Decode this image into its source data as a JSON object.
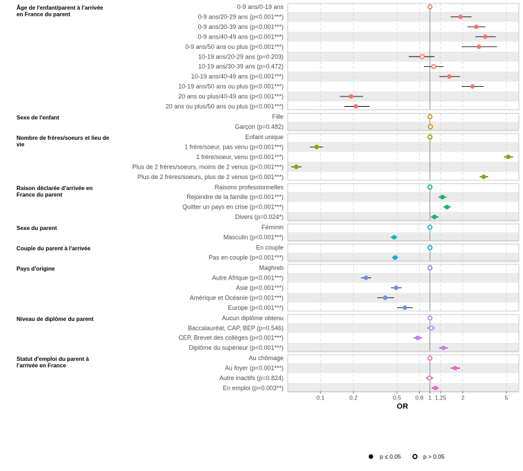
{
  "chart_data": {
    "type": "forest-plot",
    "xlabel": "OR",
    "x_scale": "log",
    "x_ticks": [
      0.1,
      0.2,
      0.5,
      0.8,
      1,
      1.25,
      2,
      5
    ],
    "x_tick_labels": [
      "0.1",
      "0.2",
      "0.5",
      "0.8",
      "1",
      "1.25",
      "2",
      "5"
    ],
    "reference_line": 1,
    "legend": {
      "position": "bottom-right",
      "significant": "p ≤ 0.05",
      "not_significant": "p > 0.05"
    },
    "groups": [
      {
        "title": "Âge de l'enfant/parent à l'arrivée en France du parent",
        "title_lines": [
          "Âge de l'enfant/parent à l'arrivée",
          "en France du parent"
        ],
        "color": "#f8766d",
        "rows": [
          {
            "label": "0-9 ans/0-19 ans",
            "or": 1,
            "lo": null,
            "hi": null,
            "sig": false
          },
          {
            "label": "0-9 ans/20-29 ans (p<0.001***)",
            "or": 1.9,
            "lo": 1.55,
            "hi": 2.4,
            "sig": true
          },
          {
            "label": "0-9 ans/30-39 ans (p<0.001***)",
            "or": 2.65,
            "lo": 2.2,
            "hi": 3.2,
            "sig": true
          },
          {
            "label": "0-9 ans/40-49 ans (p<0.001***)",
            "or": 3.2,
            "lo": 2.6,
            "hi": 4.0,
            "sig": true
          },
          {
            "label": "0-9 ans/50 ans ou plus (p<0.001***)",
            "or": 2.8,
            "lo": 1.95,
            "hi": 4.1,
            "sig": true
          },
          {
            "label": "10-19 ans/20-29 ans (p=0.203)",
            "or": 0.85,
            "lo": 0.64,
            "hi": 1.1,
            "sig": false
          },
          {
            "label": "10-19 ans/30-39 ans (p=0.472)",
            "or": 1.08,
            "lo": 0.88,
            "hi": 1.33,
            "sig": false
          },
          {
            "label": "10-19 ans/40-49 ans (p<0.001***)",
            "or": 1.5,
            "lo": 1.22,
            "hi": 1.88,
            "sig": true
          },
          {
            "label": "10-19 ans/50 ans ou plus (p<0.001***)",
            "or": 2.45,
            "lo": 1.95,
            "hi": 3.1,
            "sig": true
          },
          {
            "label": "20 ans ou plus/40-49 ans (p<0.001***)",
            "or": 0.19,
            "lo": 0.15,
            "hi": 0.245,
            "sig": true
          },
          {
            "label": "20 ans ou plus/50 ans ou plus (p<0.001***)",
            "or": 0.21,
            "lo": 0.165,
            "hi": 0.28,
            "sig": true
          }
        ]
      },
      {
        "title": "Sexe de l'enfant",
        "title_lines": [
          "Sexe de l'enfant"
        ],
        "color": "#cd9600",
        "rows": [
          {
            "label": "Fille",
            "or": 1,
            "lo": null,
            "hi": null,
            "sig": false
          },
          {
            "label": "Garçon (p=0.482)",
            "or": 1.01,
            "lo": 0.97,
            "hi": 1.06,
            "sig": false
          }
        ]
      },
      {
        "title": "Nombre de frères/soeurs et lieu de vie",
        "title_lines": [
          "Nombre de frères/soeurs et lieu de",
          "vie"
        ],
        "color": "#7cae00",
        "rows": [
          {
            "label": "Enfant unique",
            "or": 1,
            "lo": null,
            "hi": null,
            "sig": false
          },
          {
            "label": "1 frère/soeur, pas venu (p<0.001***)",
            "or": 0.092,
            "lo": 0.08,
            "hi": 0.105,
            "sig": true
          },
          {
            "label": "1 frère/soeur, venu (p<0.001***)",
            "or": 5.2,
            "lo": 4.75,
            "hi": 5.75,
            "sig": true
          },
          {
            "label": "Plus de 2 frères/soeurs, moins de 2 venus (p<0.001***)",
            "or": 0.06,
            "lo": 0.054,
            "hi": 0.067,
            "sig": true
          },
          {
            "label": "Plus de 2 frères/soeurs, plus de 2 venus (p<0.001***)",
            "or": 3.1,
            "lo": 2.85,
            "hi": 3.4,
            "sig": true
          }
        ]
      },
      {
        "title": "Raison déclarée d'arrivée en France du parent",
        "title_lines": [
          "Raison déclarée d'arrivée en",
          "France du parent"
        ],
        "color": "#00be67",
        "rows": [
          {
            "label": "Raisons professionnelles",
            "or": 1,
            "lo": null,
            "hi": null,
            "sig": false
          },
          {
            "label": "Rejoindre de la famille (p<0.001***)",
            "or": 1.3,
            "lo": 1.2,
            "hi": 1.41,
            "sig": true
          },
          {
            "label": "Quitter un pays en crise (p<0.001***)",
            "or": 1.43,
            "lo": 1.32,
            "hi": 1.55,
            "sig": true
          },
          {
            "label": "Divers (p=0.024*)",
            "or": 1.1,
            "lo": 1.02,
            "hi": 1.2,
            "sig": true
          }
        ]
      },
      {
        "title": "Sexe du parent",
        "title_lines": [
          "Sexe du parent"
        ],
        "color": "#00bfc4",
        "rows": [
          {
            "label": "Féminin",
            "or": 1,
            "lo": null,
            "hi": null,
            "sig": false
          },
          {
            "label": "Masculin (p<0.001***)",
            "or": 0.47,
            "lo": 0.44,
            "hi": 0.5,
            "sig": true
          }
        ]
      },
      {
        "title": "Couple du parent à l'arrivée",
        "title_lines": [
          "Couple du parent à l'arrivée"
        ],
        "color": "#00a9ff",
        "rows": [
          {
            "label": "En couple",
            "or": 1,
            "lo": null,
            "hi": null,
            "sig": false
          },
          {
            "label": "Pas en couple (p<0.001***)",
            "or": 0.48,
            "lo": 0.45,
            "hi": 0.51,
            "sig": true
          }
        ]
      },
      {
        "title": "Pays d'origine",
        "title_lines": [
          "Pays d'origine"
        ],
        "color": "#6f8fe8",
        "rows": [
          {
            "label": "Maghreb",
            "or": 1,
            "lo": null,
            "hi": null,
            "sig": false
          },
          {
            "label": "Autre Afrique (p<0.001***)",
            "or": 0.26,
            "lo": 0.235,
            "hi": 0.29,
            "sig": true
          },
          {
            "label": "Asie (p<0.001***)",
            "or": 0.49,
            "lo": 0.44,
            "hi": 0.55,
            "sig": true
          },
          {
            "label": "Amérique et Océanie (p<0.001***)",
            "or": 0.39,
            "lo": 0.33,
            "hi": 0.47,
            "sig": true
          },
          {
            "label": "Europe (p<0.001***)",
            "or": 0.59,
            "lo": 0.5,
            "hi": 0.7,
            "sig": true
          }
        ]
      },
      {
        "title": "Niveau de diplôme du parent",
        "title_lines": [
          "Niveau de diplôme du parent"
        ],
        "color": "#c77cff",
        "rows": [
          {
            "label": "Aucun diplôme obtenu",
            "or": 1,
            "lo": null,
            "hi": null,
            "sig": false
          },
          {
            "label": "Baccalauréat, CAP, BEP (p=0.546)",
            "or": 1.03,
            "lo": 0.95,
            "hi": 1.1,
            "sig": false
          },
          {
            "label": "CEP, Brevet des collèges (p<0.001***)",
            "or": 0.77,
            "lo": 0.71,
            "hi": 0.84,
            "sig": true
          },
          {
            "label": "Diplôme du supérieur (p<0.001***)",
            "or": 1.33,
            "lo": 1.22,
            "hi": 1.45,
            "sig": true
          }
        ]
      },
      {
        "title": "Statut d'emploi du parent à l'arrivée en France",
        "title_lines": [
          "Statut d'emploi du parent à",
          "l'arrivée en France"
        ],
        "color": "#ff61cc",
        "rows": [
          {
            "label": "Au chômage",
            "or": 1,
            "lo": null,
            "hi": null,
            "sig": false
          },
          {
            "label": "Au foyer (p<0.001***)",
            "or": 1.7,
            "lo": 1.55,
            "hi": 1.88,
            "sig": true
          },
          {
            "label": "Autre inactifs (p=0.824)",
            "or": 0.99,
            "lo": 0.92,
            "hi": 1.07,
            "sig": false
          },
          {
            "label": "En emploi (p=0.003**)",
            "or": 1.12,
            "lo": 1.04,
            "hi": 1.2,
            "sig": true
          }
        ]
      }
    ]
  }
}
